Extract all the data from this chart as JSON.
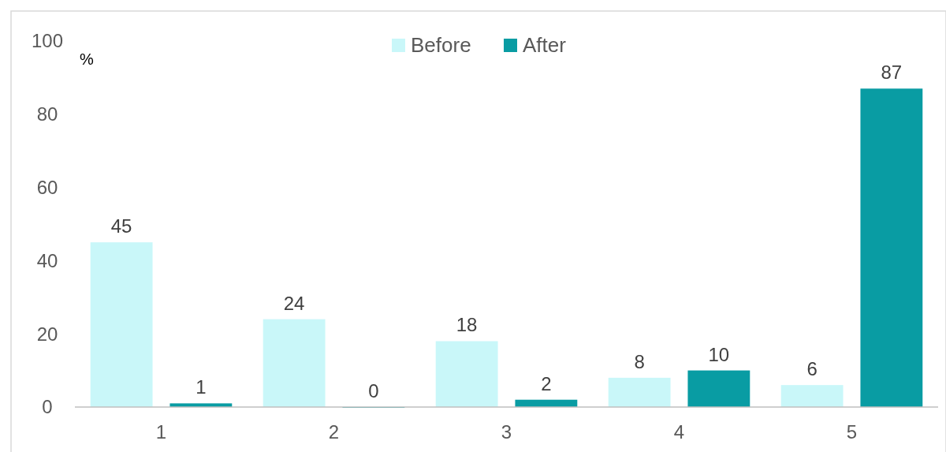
{
  "chart_data": {
    "type": "bar",
    "ylabel": "%",
    "categories": [
      "1",
      "2",
      "3",
      "4",
      "5"
    ],
    "series": [
      {
        "name": "Before",
        "color": "#c9f7f9",
        "values": [
          45,
          24,
          18,
          8,
          6
        ]
      },
      {
        "name": "After",
        "color": "#099ca3",
        "values": [
          1,
          0,
          2,
          10,
          87
        ]
      }
    ],
    "ylim": [
      0,
      100
    ],
    "yticks": [
      0,
      20,
      40,
      60,
      80,
      100
    ],
    "grid": false,
    "legend": "top",
    "data_labels": true
  }
}
